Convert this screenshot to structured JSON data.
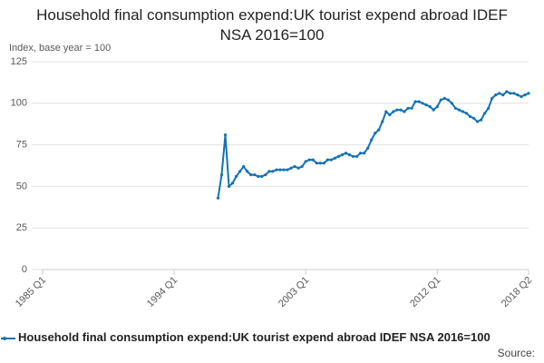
{
  "chart_data": {
    "type": "line",
    "title": "Household final consumption expend:UK tourist expend abroad IDEF NSA 2016=100",
    "y_label": "Index, base year = 100",
    "source": "Source:",
    "categories": [
      "1985 Q1",
      null,
      null,
      null,
      null,
      null,
      null,
      null,
      null,
      null,
      null,
      null,
      null,
      null,
      null,
      null,
      null,
      null,
      null,
      null,
      null,
      null,
      null,
      null,
      null,
      null,
      null,
      null,
      null,
      null,
      null,
      null,
      null,
      null,
      null,
      null,
      "1994 Q1",
      null,
      null,
      null,
      null,
      null,
      null,
      null,
      null,
      null,
      null,
      null,
      null,
      null,
      null,
      null,
      null,
      null,
      null,
      null,
      null,
      null,
      null,
      null,
      null,
      null,
      null,
      null,
      null,
      null,
      null,
      null,
      null,
      null,
      null,
      null,
      "2003 Q1",
      null,
      null,
      null,
      null,
      null,
      null,
      null,
      null,
      null,
      null,
      null,
      null,
      null,
      null,
      null,
      null,
      null,
      null,
      null,
      null,
      null,
      null,
      null,
      null,
      null,
      null,
      null,
      null,
      null,
      null,
      null,
      null,
      null,
      null,
      null,
      "2012 Q1",
      null,
      null,
      null,
      null,
      null,
      null,
      null,
      null,
      null,
      null,
      null,
      null,
      null,
      null,
      null,
      null,
      null,
      null,
      null,
      null,
      null,
      null,
      null,
      null,
      "2018 Q2"
    ],
    "series": [
      {
        "name": "Household final consumption expend:UK tourist expend abroad IDEF NSA 2016=100",
        "color": "#1373b4",
        "values": [
          null,
          null,
          null,
          null,
          null,
          null,
          null,
          null,
          null,
          null,
          null,
          null,
          null,
          null,
          null,
          null,
          null,
          null,
          null,
          null,
          null,
          null,
          null,
          null,
          null,
          null,
          null,
          null,
          null,
          null,
          null,
          null,
          null,
          null,
          null,
          null,
          null,
          null,
          null,
          null,
          null,
          null,
          null,
          null,
          null,
          null,
          null,
          null,
          43,
          57,
          81,
          50,
          52,
          56,
          59,
          62,
          59,
          57,
          57,
          56,
          56,
          57,
          59,
          59,
          60,
          60,
          60,
          60,
          61,
          62,
          61,
          62,
          65,
          66,
          66,
          64,
          64,
          64,
          66,
          66,
          67,
          68,
          69,
          70,
          69,
          68,
          68,
          70,
          70,
          73,
          78,
          82,
          84,
          89,
          95,
          93,
          95,
          96,
          96,
          95,
          97,
          97,
          101,
          101,
          100,
          99,
          98,
          96,
          98,
          102,
          103,
          102,
          100,
          97,
          96,
          95,
          94,
          92,
          91,
          89,
          90,
          94,
          97,
          103,
          105,
          106,
          105,
          107,
          106,
          106,
          105,
          104,
          105,
          106
        ]
      }
    ],
    "ylim": [
      0,
      125
    ],
    "yticks": [
      0,
      25,
      50,
      75,
      100,
      125
    ],
    "grid": true
  }
}
